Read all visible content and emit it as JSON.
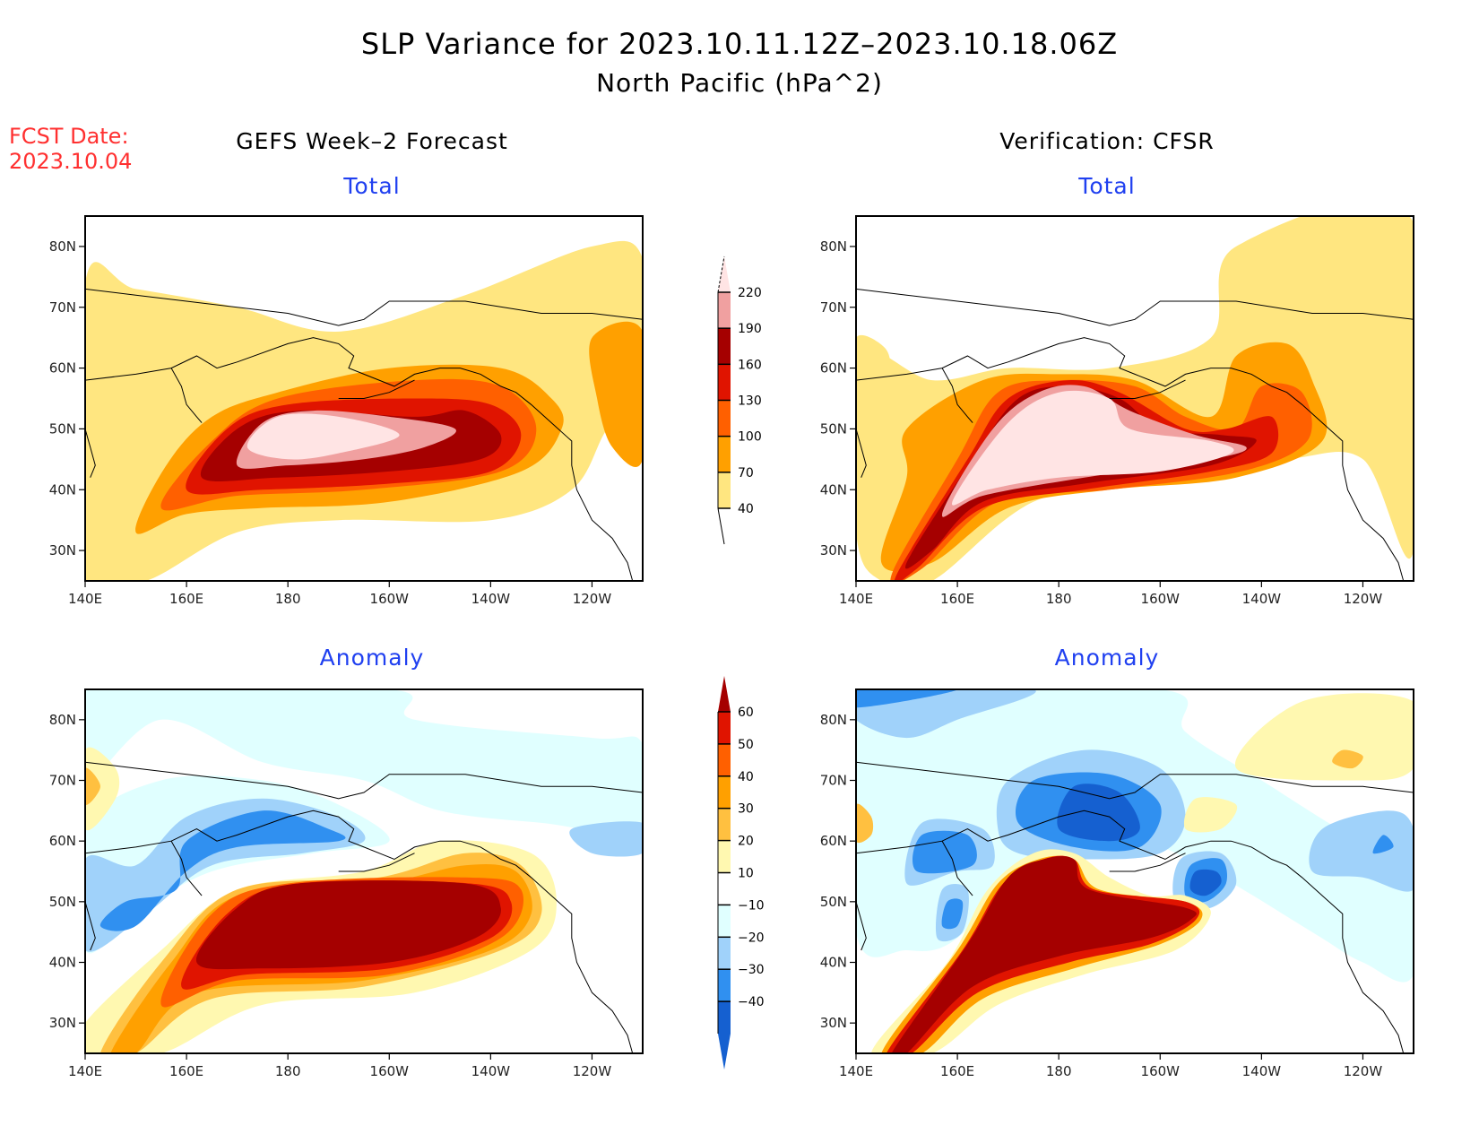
{
  "title": "SLP Variance for 2023.10.11.12Z–2023.10.18.06Z",
  "subtitle": "North Pacific (hPa^2)",
  "fcst_date": {
    "label": "FCST Date:",
    "value": "2023.10.04"
  },
  "columns": {
    "left": "GEFS Week–2 Forecast",
    "right": "Verification: CFSR"
  },
  "panel_titles": {
    "top_left": "Total",
    "top_right": "Total",
    "bottom_left": "Anomaly",
    "bottom_right": "Anomaly"
  },
  "chart_data": [
    {
      "type": "heatmap",
      "title": "Total",
      "group": "GEFS Week-2 Forecast",
      "region": "North Pacific",
      "units": "hPa^2",
      "x_ticks": [
        "140E",
        "160E",
        "180",
        "160W",
        "140W",
        "120W"
      ],
      "y_ticks": [
        "30N",
        "40N",
        "50N",
        "60N",
        "70N",
        "80N"
      ],
      "xlim": [
        140,
        250
      ],
      "ylim": [
        25,
        85
      ],
      "max_center": {
        "lon": 180,
        "lat": 48,
        "level": ">220"
      },
      "description": "Zonally elongated maximum 40N-55N, 160E-140W; peak >220 near dateline"
    },
    {
      "type": "heatmap",
      "title": "Total",
      "group": "Verification: CFSR",
      "region": "North Pacific",
      "units": "hPa^2",
      "x_ticks": [
        "140E",
        "160E",
        "180",
        "160W",
        "140W",
        "120W"
      ],
      "y_ticks": [
        "30N",
        "40N",
        "50N",
        "60N",
        "70N",
        "80N"
      ],
      "xlim": [
        140,
        250
      ],
      "ylim": [
        25,
        85
      ],
      "max_center": {
        "lon": 180,
        "lat": 48,
        "level": ">220"
      },
      "description": "SW-NE elongated maximum from 145E/25N to 170W/57N, extending east to 150W near 47N"
    },
    {
      "type": "heatmap",
      "title": "Anomaly",
      "group": "GEFS Week-2 Forecast",
      "region": "North Pacific",
      "units": "hPa^2",
      "x_ticks": [
        "140E",
        "160E",
        "180",
        "160W",
        "140W",
        "120W"
      ],
      "y_ticks": [
        "30N",
        "40N",
        "50N",
        "60N",
        "70N",
        "80N"
      ],
      "xlim": [
        140,
        250
      ],
      "ylim": [
        25,
        85
      ],
      "description": "Positive anomaly >60 over 40N-55N, 165E-140W; negative <-30 over Okhotsk/Kamchatka"
    },
    {
      "type": "heatmap",
      "title": "Anomaly",
      "group": "Verification: CFSR",
      "region": "North Pacific",
      "units": "hPa^2",
      "x_ticks": [
        "140E",
        "160E",
        "180",
        "160W",
        "140W",
        "120W"
      ],
      "y_ticks": [
        "30N",
        "40N",
        "50N",
        "60N",
        "70N",
        "80N"
      ],
      "xlim": [
        140,
        250
      ],
      "ylim": [
        25,
        85
      ],
      "description": "Positive anomaly >60 along SW-NE band 145E/25N to 175W/57N; negative <-40 over Chukotka and near 155W/55N"
    }
  ],
  "colorbars": {
    "total": {
      "levels": [
        "40",
        "70",
        "100",
        "130",
        "160",
        "190",
        "220"
      ],
      "colors": [
        "#ffe680",
        "#ffa000",
        "#ff6000",
        "#e01400",
        "#a50000",
        "#f0a0a0",
        "#ffe4e4"
      ]
    },
    "anomaly": {
      "levels": [
        "60",
        "50",
        "40",
        "30",
        "20",
        "10",
        "−10",
        "−20",
        "−30",
        "−40"
      ],
      "colors_pos": [
        "#a50000",
        "#e01400",
        "#ff6000",
        "#ffa000",
        "#ffc040",
        "#fff8b0"
      ],
      "colors_neg": [
        "#e0ffff",
        "#a0d2fa",
        "#3090f0",
        "#1560d0"
      ]
    }
  }
}
